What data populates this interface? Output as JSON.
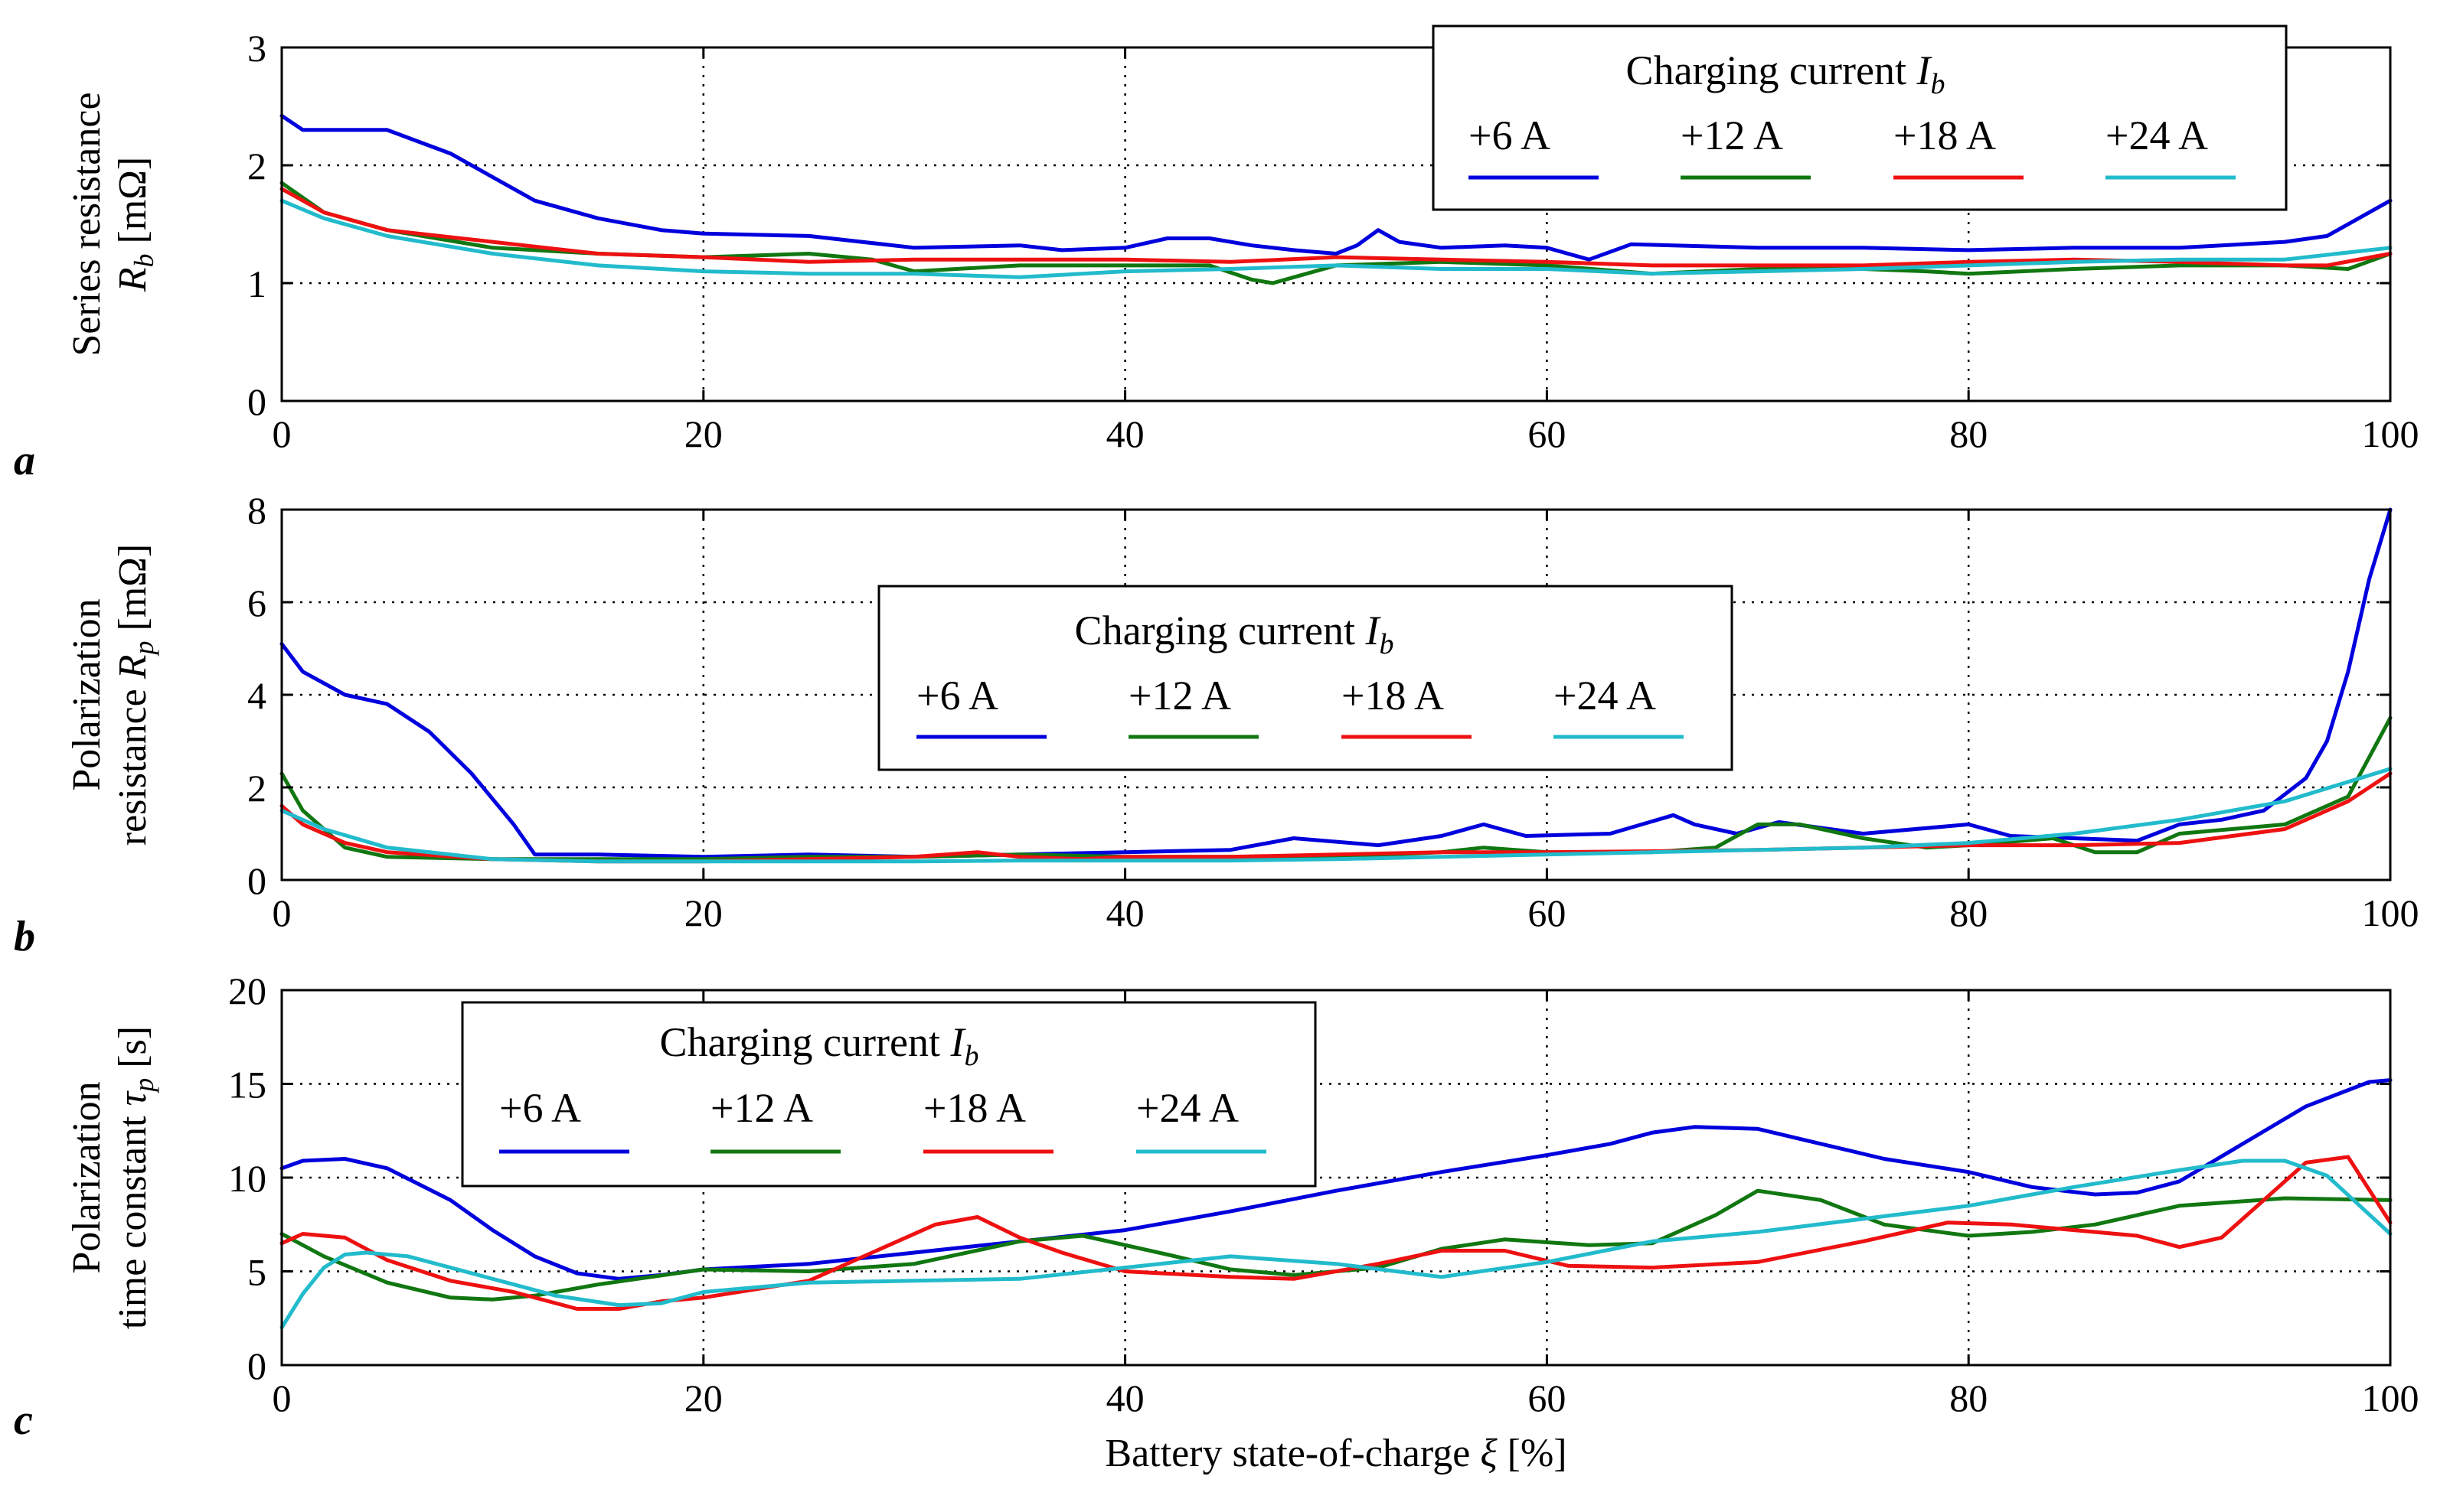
{
  "chart_data": [
    {
      "type": "line",
      "panel_label": "a",
      "ylabel_line1": "Series resistance",
      "ylabel_sym": "R",
      "ylabel_sub": "b",
      "ylabel_unit": " [mΩ]",
      "xlim": [
        0,
        100
      ],
      "ylim": [
        0,
        3
      ],
      "xticks": [
        "0",
        "20",
        "40",
        "60",
        "80",
        "100"
      ],
      "yticks": [
        "0",
        "1",
        "2",
        "3"
      ],
      "grid": true,
      "legend": {
        "title_text": "Charging current ",
        "title_sym": "I",
        "title_sub": "b",
        "placement": "top-right"
      },
      "series": [
        {
          "name": "+6 A",
          "color": "#0000dd",
          "x": [
            0,
            1,
            5,
            8,
            10,
            12,
            15,
            18,
            20,
            25,
            30,
            35,
            37,
            40,
            42,
            44,
            46,
            48,
            50,
            51,
            52,
            53,
            55,
            58,
            60,
            62,
            64,
            66,
            70,
            75,
            80,
            85,
            90,
            95,
            97,
            100
          ],
          "y": [
            2.42,
            2.3,
            2.3,
            2.1,
            1.9,
            1.7,
            1.55,
            1.45,
            1.42,
            1.4,
            1.3,
            1.32,
            1.28,
            1.3,
            1.38,
            1.38,
            1.32,
            1.28,
            1.25,
            1.32,
            1.45,
            1.35,
            1.3,
            1.32,
            1.3,
            1.2,
            1.33,
            1.32,
            1.3,
            1.3,
            1.28,
            1.3,
            1.3,
            1.35,
            1.4,
            1.7
          ]
        },
        {
          "name": "+12 A",
          "color": "#117711",
          "x": [
            0,
            2,
            5,
            10,
            15,
            20,
            25,
            28,
            30,
            35,
            40,
            44,
            46,
            47,
            48,
            50,
            55,
            60,
            65,
            70,
            75,
            78,
            80,
            85,
            90,
            95,
            98,
            100
          ],
          "y": [
            1.85,
            1.6,
            1.45,
            1.3,
            1.25,
            1.22,
            1.25,
            1.2,
            1.1,
            1.15,
            1.15,
            1.15,
            1.03,
            1.0,
            1.05,
            1.15,
            1.18,
            1.15,
            1.08,
            1.12,
            1.12,
            1.1,
            1.08,
            1.12,
            1.15,
            1.15,
            1.12,
            1.25
          ]
        },
        {
          "name": "+18 A",
          "color": "#ee1111",
          "x": [
            0,
            2,
            5,
            10,
            15,
            20,
            25,
            30,
            35,
            40,
            45,
            50,
            55,
            60,
            65,
            70,
            75,
            80,
            85,
            90,
            95,
            97,
            100
          ],
          "y": [
            1.8,
            1.6,
            1.45,
            1.35,
            1.25,
            1.22,
            1.18,
            1.2,
            1.2,
            1.2,
            1.18,
            1.22,
            1.2,
            1.18,
            1.15,
            1.15,
            1.15,
            1.18,
            1.2,
            1.18,
            1.15,
            1.15,
            1.25
          ]
        },
        {
          "name": "+24 A",
          "color": "#22bbcc",
          "x": [
            0,
            2,
            5,
            10,
            15,
            20,
            25,
            30,
            35,
            40,
            45,
            50,
            55,
            60,
            65,
            70,
            75,
            80,
            85,
            90,
            95,
            100
          ],
          "y": [
            1.7,
            1.55,
            1.4,
            1.25,
            1.15,
            1.1,
            1.08,
            1.08,
            1.05,
            1.1,
            1.12,
            1.15,
            1.12,
            1.12,
            1.08,
            1.1,
            1.12,
            1.15,
            1.18,
            1.2,
            1.2,
            1.3
          ]
        }
      ]
    },
    {
      "type": "line",
      "panel_label": "b",
      "ylabel_line1": "Polarization",
      "ylabel_pre": "resistance ",
      "ylabel_sym": "R",
      "ylabel_sub": "p",
      "ylabel_unit": " [mΩ]",
      "xlim": [
        0,
        100
      ],
      "ylim": [
        0,
        8
      ],
      "xticks": [
        "0",
        "20",
        "40",
        "60",
        "80",
        "100"
      ],
      "yticks": [
        "0",
        "2",
        "4",
        "6",
        "8"
      ],
      "grid": true,
      "legend": {
        "title_text": "Charging current ",
        "title_sym": "I",
        "title_sub": "b",
        "placement": "top-center"
      },
      "series": [
        {
          "name": "+6 A",
          "color": "#0000dd",
          "x": [
            0,
            1,
            3,
            5,
            7,
            9,
            11,
            12,
            15,
            20,
            25,
            30,
            35,
            40,
            45,
            48,
            52,
            55,
            57,
            59,
            63,
            66,
            67,
            69,
            71,
            75,
            80,
            82,
            85,
            88,
            90,
            92,
            94,
            96,
            97,
            98,
            99,
            100
          ],
          "y": [
            5.1,
            4.5,
            4.0,
            3.8,
            3.2,
            2.3,
            1.2,
            0.55,
            0.55,
            0.5,
            0.55,
            0.5,
            0.55,
            0.6,
            0.65,
            0.9,
            0.75,
            0.95,
            1.2,
            0.95,
            1.0,
            1.4,
            1.2,
            1.0,
            1.25,
            1.0,
            1.2,
            0.95,
            0.9,
            0.85,
            1.2,
            1.3,
            1.5,
            2.2,
            3.0,
            4.5,
            6.5,
            8.0
          ]
        },
        {
          "name": "+12 A",
          "color": "#117711",
          "x": [
            0,
            1,
            3,
            5,
            10,
            15,
            20,
            25,
            30,
            35,
            40,
            45,
            50,
            55,
            57,
            60,
            65,
            68,
            70,
            72,
            75,
            78,
            80,
            84,
            86,
            88,
            90,
            95,
            98,
            100
          ],
          "y": [
            2.3,
            1.5,
            0.7,
            0.5,
            0.45,
            0.45,
            0.45,
            0.5,
            0.5,
            0.55,
            0.5,
            0.5,
            0.5,
            0.6,
            0.7,
            0.6,
            0.6,
            0.7,
            1.2,
            1.2,
            0.9,
            0.7,
            0.75,
            0.9,
            0.6,
            0.6,
            1.0,
            1.2,
            1.8,
            3.5
          ]
        },
        {
          "name": "+18 A",
          "color": "#ee1111",
          "x": [
            0,
            1,
            3,
            5,
            10,
            15,
            20,
            25,
            30,
            33,
            35,
            38,
            40,
            45,
            50,
            55,
            60,
            65,
            70,
            75,
            80,
            85,
            90,
            95,
            98,
            100
          ],
          "y": [
            1.6,
            1.2,
            0.8,
            0.6,
            0.45,
            0.4,
            0.4,
            0.45,
            0.5,
            0.6,
            0.5,
            0.45,
            0.5,
            0.5,
            0.55,
            0.6,
            0.6,
            0.62,
            0.65,
            0.7,
            0.75,
            0.75,
            0.8,
            1.1,
            1.7,
            2.3
          ]
        },
        {
          "name": "+24 A",
          "color": "#22bbcc",
          "x": [
            0,
            2,
            5,
            10,
            15,
            20,
            25,
            30,
            35,
            40,
            45,
            50,
            55,
            60,
            65,
            70,
            75,
            80,
            85,
            90,
            95,
            100
          ],
          "y": [
            1.5,
            1.1,
            0.7,
            0.45,
            0.4,
            0.4,
            0.4,
            0.4,
            0.42,
            0.42,
            0.42,
            0.45,
            0.5,
            0.55,
            0.6,
            0.65,
            0.7,
            0.8,
            1.0,
            1.3,
            1.7,
            2.4
          ]
        }
      ]
    },
    {
      "type": "line",
      "panel_label": "c",
      "ylabel_line1": "Polarization",
      "ylabel_pre": "time constant ",
      "ylabel_sym": "τ",
      "ylabel_sub": "p",
      "ylabel_unit": " [s]",
      "xlabel_text": "Battery state-of-charge ",
      "xlabel_sym": "ξ",
      "xlabel_unit": " [%]",
      "xlim": [
        0,
        100
      ],
      "ylim": [
        0,
        20
      ],
      "xticks": [
        "0",
        "20",
        "40",
        "60",
        "80",
        "100"
      ],
      "yticks": [
        "0",
        "5",
        "10",
        "15",
        "20"
      ],
      "grid": true,
      "legend": {
        "title_text": "Charging current ",
        "title_sym": "I",
        "title_sub": "b",
        "placement": "top-left"
      },
      "series": [
        {
          "name": "+6 A",
          "color": "#0000dd",
          "x": [
            0,
            1,
            3,
            5,
            8,
            10,
            12,
            14,
            16,
            18,
            20,
            25,
            30,
            35,
            40,
            45,
            50,
            55,
            60,
            63,
            65,
            67,
            70,
            73,
            76,
            80,
            83,
            86,
            88,
            90,
            93,
            96,
            99,
            100
          ],
          "y": [
            10.5,
            10.9,
            11.0,
            10.5,
            8.8,
            7.2,
            5.8,
            4.9,
            4.6,
            4.8,
            5.1,
            5.4,
            6.0,
            6.6,
            7.2,
            8.2,
            9.3,
            10.3,
            11.2,
            11.8,
            12.4,
            12.7,
            12.6,
            11.8,
            11.0,
            10.3,
            9.5,
            9.1,
            9.2,
            9.8,
            11.8,
            13.8,
            15.1,
            15.2
          ]
        },
        {
          "name": "+12 A",
          "color": "#117711",
          "x": [
            0,
            2,
            5,
            8,
            10,
            12,
            15,
            20,
            25,
            30,
            35,
            38,
            42,
            45,
            48,
            52,
            55,
            58,
            62,
            65,
            68,
            70,
            73,
            76,
            80,
            83,
            86,
            90,
            95,
            100
          ],
          "y": [
            7.0,
            5.8,
            4.4,
            3.6,
            3.5,
            3.7,
            4.3,
            5.1,
            5.0,
            5.4,
            6.6,
            6.9,
            5.9,
            5.1,
            4.8,
            5.2,
            6.2,
            6.7,
            6.4,
            6.5,
            8.0,
            9.3,
            8.8,
            7.5,
            6.9,
            7.1,
            7.5,
            8.5,
            8.9,
            8.8
          ]
        },
        {
          "name": "+18 A",
          "color": "#ee1111",
          "x": [
            0,
            1,
            3,
            5,
            8,
            11,
            14,
            16,
            18,
            20,
            25,
            28,
            31,
            33,
            35,
            37,
            40,
            45,
            48,
            52,
            55,
            58,
            61,
            65,
            70,
            75,
            79,
            82,
            85,
            88,
            90,
            92,
            94,
            96,
            98,
            100
          ],
          "y": [
            6.5,
            7.0,
            6.8,
            5.6,
            4.5,
            3.9,
            3.0,
            3.0,
            3.4,
            3.6,
            4.5,
            6.0,
            7.5,
            7.9,
            6.8,
            6.0,
            5.0,
            4.7,
            4.6,
            5.4,
            6.1,
            6.1,
            5.3,
            5.2,
            5.5,
            6.6,
            7.6,
            7.5,
            7.2,
            6.9,
            6.3,
            6.8,
            8.8,
            10.8,
            11.1,
            7.6
          ]
        },
        {
          "name": "+24 A",
          "color": "#22bbcc",
          "x": [
            0,
            1,
            2,
            3,
            4,
            6,
            8,
            10,
            13,
            16,
            18,
            20,
            25,
            30,
            35,
            40,
            45,
            50,
            55,
            60,
            65,
            70,
            75,
            80,
            85,
            90,
            93,
            95,
            97,
            100
          ],
          "y": [
            2.0,
            3.8,
            5.2,
            5.9,
            6.0,
            5.8,
            5.2,
            4.6,
            3.7,
            3.2,
            3.3,
            3.9,
            4.4,
            4.5,
            4.6,
            5.2,
            5.8,
            5.4,
            4.7,
            5.5,
            6.6,
            7.1,
            7.8,
            8.5,
            9.5,
            10.4,
            10.9,
            10.9,
            10.1,
            7.0
          ]
        }
      ]
    }
  ]
}
